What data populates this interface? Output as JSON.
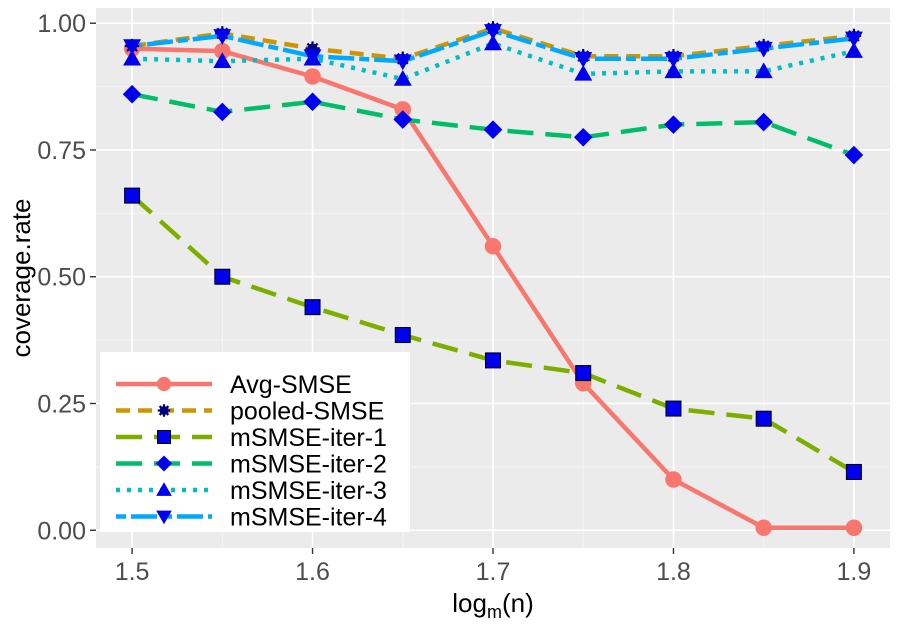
{
  "chart_data": {
    "type": "line",
    "title": "",
    "xlabel_main": "log",
    "xlabel_sub": "m",
    "xlabel_tail": "(n)",
    "ylabel": "coverage.rate",
    "x": [
      1.5,
      1.55,
      1.6,
      1.65,
      1.7,
      1.75,
      1.8,
      1.85,
      1.9
    ],
    "xlim": [
      1.48,
      1.92
    ],
    "ylim": [
      -0.035,
      1.03
    ],
    "x_ticks": [
      1.5,
      1.6,
      1.7,
      1.8,
      1.9
    ],
    "x_tick_labels": [
      "1.5",
      "1.6",
      "1.7",
      "1.8",
      "1.9"
    ],
    "y_ticks": [
      0,
      0.25,
      0.5,
      0.75,
      1.0
    ],
    "y_tick_labels": [
      "0.00",
      "0.25",
      "0.50",
      "0.75",
      "1.00"
    ],
    "grid": true,
    "legend_position": "bottom-left",
    "series": [
      {
        "name": "Avg-SMSE",
        "color": "#F8766D",
        "dash": "solid",
        "marker": "circle",
        "values": [
          0.95,
          0.945,
          0.895,
          0.83,
          0.56,
          0.29,
          0.1,
          0.005,
          0.005
        ]
      },
      {
        "name": "pooled-SMSE",
        "color": "#CD9600",
        "dash": "dashed",
        "marker": "star",
        "values": [
          0.955,
          0.98,
          0.95,
          0.93,
          0.99,
          0.935,
          0.935,
          0.955,
          0.975
        ]
      },
      {
        "name": "mSMSE-iter-1",
        "color": "#7CAE00",
        "dash": "longdash",
        "marker": "square",
        "values": [
          0.66,
          0.5,
          0.44,
          0.385,
          0.335,
          0.31,
          0.24,
          0.22,
          0.115
        ]
      },
      {
        "name": "mSMSE-iter-2",
        "color": "#00BE67",
        "dash": "longdash",
        "marker": "diamond",
        "values": [
          0.86,
          0.825,
          0.845,
          0.81,
          0.79,
          0.775,
          0.8,
          0.805,
          0.74
        ]
      },
      {
        "name": "mSMSE-iter-3",
        "color": "#00BFC4",
        "dash": "dotted",
        "marker": "triangle-up",
        "values": [
          0.93,
          0.925,
          0.93,
          0.89,
          0.96,
          0.9,
          0.905,
          0.905,
          0.945
        ]
      },
      {
        "name": "mSMSE-iter-4",
        "color": "#00A9FF",
        "dash": "twodash",
        "marker": "triangle-down",
        "values": [
          0.955,
          0.975,
          0.935,
          0.925,
          0.985,
          0.93,
          0.93,
          0.95,
          0.97
        ]
      }
    ]
  }
}
